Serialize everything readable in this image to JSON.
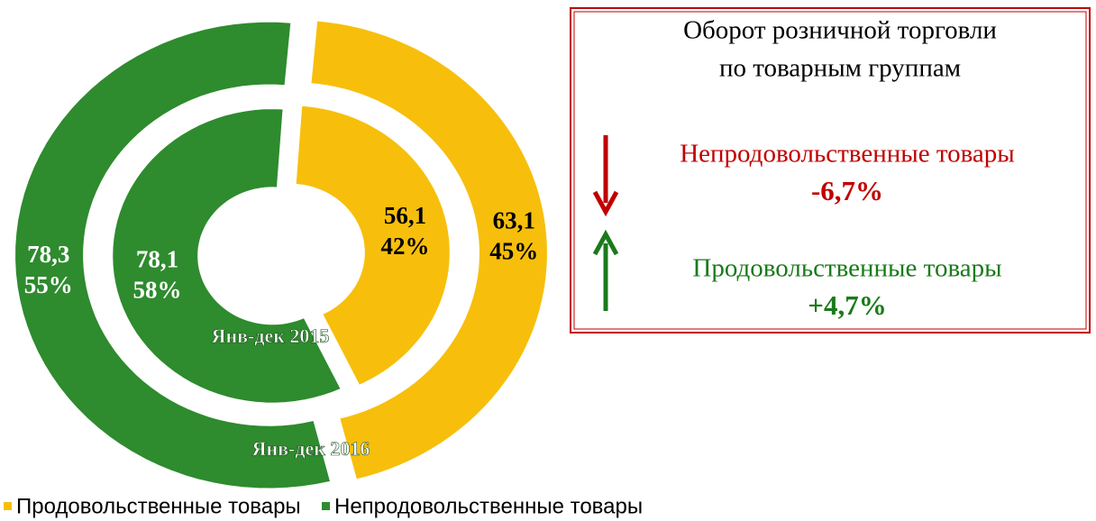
{
  "chart_data": {
    "type": "doughnut",
    "categories": [
      "Продовольственные товары",
      "Непродовольственные товары"
    ],
    "colors": [
      "#f7bf0c",
      "#2e8b2e"
    ],
    "rings": [
      {
        "name": "Янв-дек 2015",
        "values": [
          56.1,
          78.1
        ],
        "value_labels": [
          "56,1",
          "78,1"
        ],
        "percents": [
          42,
          58
        ],
        "percent_labels": [
          "42%",
          "58%"
        ]
      },
      {
        "name": "Янв-дек 2016",
        "values": [
          63.1,
          78.3
        ],
        "value_labels": [
          "63,1",
          "78,3"
        ],
        "percents": [
          45,
          55
        ],
        "percent_labels": [
          "45%",
          "55%"
        ]
      }
    ]
  },
  "panel": {
    "title": [
      "Оборот розничной торговли",
      "по товарным группам"
    ],
    "items": [
      {
        "name": "Непродовольственные товары",
        "change": "-6,7%",
        "color": "#c00000",
        "direction": "down"
      },
      {
        "name": "Продовольственные товары",
        "change": "+4,7%",
        "color": "#1a7a1a",
        "direction": "up"
      }
    ]
  }
}
